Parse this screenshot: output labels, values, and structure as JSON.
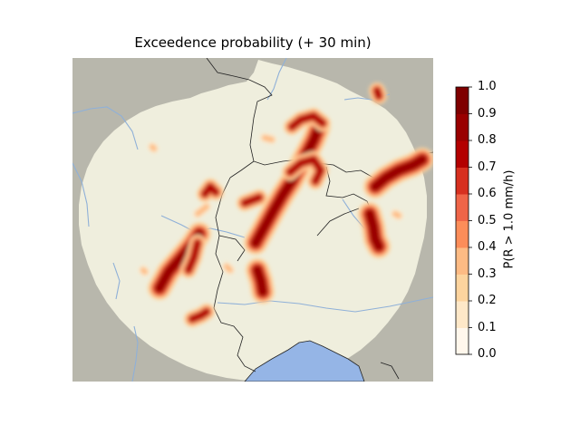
{
  "title": "Exceedence probability (+ 30 min)",
  "colorbar": {
    "label": "P(R > 1.0 mm/h)",
    "ticks": [
      "0.0",
      "0.1",
      "0.2",
      "0.3",
      "0.4",
      "0.5",
      "0.6",
      "0.7",
      "0.8",
      "0.9",
      "1.0"
    ],
    "colors": [
      "#fff7ec",
      "#fee8c8",
      "#fdd49e",
      "#fdbb84",
      "#fc8d59",
      "#ef6548",
      "#d7301f",
      "#b30000",
      "#990000",
      "#7f0000"
    ]
  },
  "map_colors": {
    "outside": "#b8b7ac",
    "radar": "#efeedd",
    "lake": "#95b5e6",
    "river": "#8fb0d8",
    "border": "#222222"
  }
}
